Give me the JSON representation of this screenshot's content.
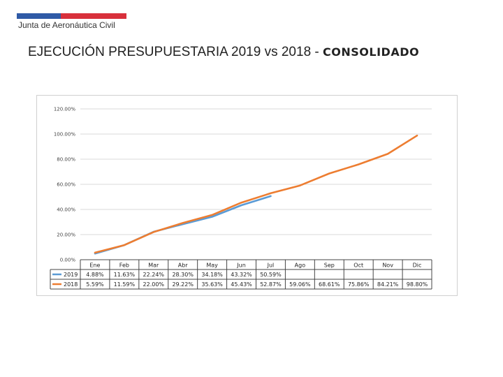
{
  "header": {
    "org": "Junta de Aeronáutica Civil",
    "title_main": "EJECUCIÓN PRESUPUESTARIA 2019 vs 2018 - ",
    "title_bold": "CONSOLIDADO"
  },
  "colors": {
    "s2019": "#5b9bd5",
    "s2018": "#ed7d31",
    "grid": "#d9d9d9",
    "brand_blue": "#2f5aa6",
    "brand_red": "#d8303b"
  },
  "chart_data": {
    "type": "line",
    "title": "EJECUCIÓN PRESUPUESTARIA 2019 vs 2018 - CONSOLIDADO",
    "categories": [
      "Ene",
      "Feb",
      "Mar",
      "Abr",
      "May",
      "Jun",
      "Jul",
      "Ago",
      "Sep",
      "Oct",
      "Nov",
      "Dic"
    ],
    "ylim": [
      0,
      120
    ],
    "yticks": [
      0,
      20,
      40,
      60,
      80,
      100,
      120
    ],
    "ytick_labels": [
      "0.00%",
      "20.00%",
      "40.00%",
      "60.00%",
      "80.00%",
      "100.00%",
      "120.00%"
    ],
    "series": [
      {
        "name": "2019",
        "values": [
          4.88,
          11.63,
          22.24,
          28.3,
          34.18,
          43.32,
          50.59,
          null,
          null,
          null,
          null,
          null
        ],
        "labels": [
          "4.88%",
          "11.63%",
          "22.24%",
          "28.30%",
          "34.18%",
          "43.32%",
          "50.59%",
          "",
          "",
          "",
          "",
          ""
        ]
      },
      {
        "name": "2018",
        "values": [
          5.59,
          11.59,
          22.0,
          29.22,
          35.63,
          45.43,
          52.87,
          59.06,
          68.61,
          75.86,
          84.21,
          98.8
        ],
        "labels": [
          "5.59%",
          "11.59%",
          "22.00%",
          "29.22%",
          "35.63%",
          "45.43%",
          "52.87%",
          "59.06%",
          "68.61%",
          "75.86%",
          "84.21%",
          "98.80%"
        ]
      }
    ],
    "grid": true,
    "legend": "data-table-left"
  }
}
